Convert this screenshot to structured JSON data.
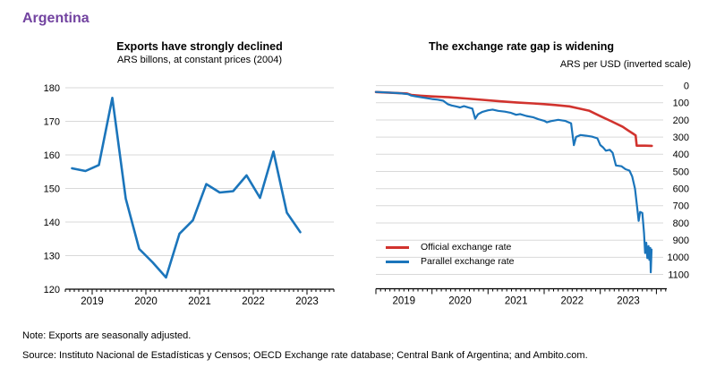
{
  "page_title": "Argentina",
  "accent_color": "#7243a0",
  "text_color": "#000000",
  "grid_color": "#d9d9d9",
  "note": "Note: Exports are seasonally adjusted.",
  "source": "Source: Instituto Nacional de Estadísticas y Censos; OECD Exchange rate database; Central Bank of Argentina; and Ambito.com.",
  "chart_data": [
    {
      "id": "exports",
      "type": "line",
      "title": "Exports have strongly declined",
      "subtitle": "ARS billons, at constant prices (2004)",
      "xlabel": "",
      "ylabel": "",
      "ylim": [
        120,
        180
      ],
      "yticks": [
        120,
        130,
        140,
        150,
        160,
        170,
        180
      ],
      "y_axis_side": "left",
      "y_inverted": false,
      "xlim": [
        2018.5,
        2023.5
      ],
      "xticks": [
        2019,
        2020,
        2021,
        2022,
        2023
      ],
      "xtick_label_align": "tick",
      "grid": true,
      "frequency": "quarterly",
      "series": [
        {
          "name": "Exports",
          "color": "#1b75bb",
          "width": 2.6,
          "points": [
            [
              2018.625,
              156
            ],
            [
              2018.875,
              155.2
            ],
            [
              2019.125,
              157
            ],
            [
              2019.375,
              177
            ],
            [
              2019.625,
              147
            ],
            [
              2019.875,
              132
            ],
            [
              2020.125,
              128
            ],
            [
              2020.375,
              123.5
            ],
            [
              2020.625,
              136.5
            ],
            [
              2020.875,
              140.5
            ],
            [
              2021.125,
              151.3
            ],
            [
              2021.375,
              148.8
            ],
            [
              2021.625,
              149.2
            ],
            [
              2021.875,
              153.9
            ],
            [
              2022.125,
              147.2
            ],
            [
              2022.375,
              161
            ],
            [
              2022.625,
              142.8
            ],
            [
              2022.875,
              137
            ]
          ]
        }
      ]
    },
    {
      "id": "exchange",
      "type": "line",
      "title": "The exchange rate gap is widening",
      "subtitle": "ARS per USD (inverted scale)",
      "xlabel": "",
      "ylabel": "",
      "ylim": [
        0,
        1100
      ],
      "yticks": [
        0,
        100,
        200,
        300,
        400,
        500,
        600,
        700,
        800,
        900,
        1000,
        1100
      ],
      "y_axis_side": "right",
      "y_inverted": true,
      "xlim": [
        2019.0,
        2024.0
      ],
      "xticks": [
        2019,
        2020,
        2021,
        2022,
        2023
      ],
      "xtick_label_align": "mid",
      "grid": true,
      "frequency": "monthly",
      "legend": [
        {
          "label": "Official exchange rate",
          "color": "#d1332e"
        },
        {
          "label": "Parallel exchange rate",
          "color": "#1b75bb"
        }
      ],
      "series": [
        {
          "name": "Official exchange rate",
          "color": "#d1332e",
          "width": 2.6,
          "points": [
            [
              2019.0,
              37.5
            ],
            [
              2019.3,
              42
            ],
            [
              2019.55,
              46
            ],
            [
              2019.63,
              54
            ],
            [
              2019.8,
              59
            ],
            [
              2020.0,
              63
            ],
            [
              2020.3,
              68
            ],
            [
              2020.6,
              75
            ],
            [
              2020.9,
              83
            ],
            [
              2021.2,
              91
            ],
            [
              2021.5,
              98
            ],
            [
              2021.8,
              104
            ],
            [
              2022.0,
              108
            ],
            [
              2022.2,
              113
            ],
            [
              2022.45,
              121
            ],
            [
              2022.6,
              132
            ],
            [
              2022.8,
              146
            ],
            [
              2023.0,
              178
            ],
            [
              2023.2,
              208
            ],
            [
              2023.4,
              240
            ],
            [
              2023.5,
              262
            ],
            [
              2023.6,
              283
            ],
            [
              2023.63,
              290
            ],
            [
              2023.65,
              350
            ],
            [
              2023.8,
              350
            ],
            [
              2023.92,
              351
            ]
          ]
        },
        {
          "name": "Parallel exchange rate",
          "color": "#1b75bb",
          "width": 2.2,
          "points": [
            [
              2019.0,
              37
            ],
            [
              2019.2,
              40
            ],
            [
              2019.4,
              44
            ],
            [
              2019.5,
              47
            ],
            [
              2019.58,
              50
            ],
            [
              2019.63,
              58
            ],
            [
              2019.7,
              62
            ],
            [
              2019.8,
              68
            ],
            [
              2019.9,
              73
            ],
            [
              2020.0,
              78
            ],
            [
              2020.1,
              82
            ],
            [
              2020.2,
              88
            ],
            [
              2020.28,
              108
            ],
            [
              2020.35,
              116
            ],
            [
              2020.45,
              123
            ],
            [
              2020.5,
              127
            ],
            [
              2020.57,
              120
            ],
            [
              2020.65,
              128
            ],
            [
              2020.72,
              134
            ],
            [
              2020.77,
              193
            ],
            [
              2020.82,
              167
            ],
            [
              2020.9,
              153
            ],
            [
              2021.0,
              144
            ],
            [
              2021.08,
              140
            ],
            [
              2021.18,
              147
            ],
            [
              2021.3,
              152
            ],
            [
              2021.4,
              158
            ],
            [
              2021.5,
              170
            ],
            [
              2021.57,
              166
            ],
            [
              2021.68,
              177
            ],
            [
              2021.8,
              184
            ],
            [
              2021.9,
              196
            ],
            [
              2022.0,
              205
            ],
            [
              2022.05,
              214
            ],
            [
              2022.12,
              207
            ],
            [
              2022.25,
              199
            ],
            [
              2022.38,
              206
            ],
            [
              2022.48,
              220
            ],
            [
              2022.53,
              347
            ],
            [
              2022.57,
              299
            ],
            [
              2022.65,
              288
            ],
            [
              2022.75,
              292
            ],
            [
              2022.85,
              297
            ],
            [
              2022.95,
              307
            ],
            [
              2023.0,
              346
            ],
            [
              2023.05,
              360
            ],
            [
              2023.1,
              379
            ],
            [
              2023.17,
              374
            ],
            [
              2023.22,
              391
            ],
            [
              2023.28,
              465
            ],
            [
              2023.38,
              470
            ],
            [
              2023.45,
              487
            ],
            [
              2023.52,
              495
            ],
            [
              2023.57,
              530
            ],
            [
              2023.62,
              600
            ],
            [
              2023.655,
              700
            ],
            [
              2023.685,
              788
            ],
            [
              2023.71,
              736
            ],
            [
              2023.75,
              742
            ],
            [
              2023.78,
              860
            ],
            [
              2023.8,
              975
            ],
            [
              2023.82,
              915
            ],
            [
              2023.84,
              1005
            ],
            [
              2023.86,
              935
            ],
            [
              2023.875,
              1015
            ],
            [
              2023.89,
              945
            ],
            [
              2023.9,
              1088
            ],
            [
              2023.915,
              955
            ]
          ]
        }
      ]
    }
  ]
}
